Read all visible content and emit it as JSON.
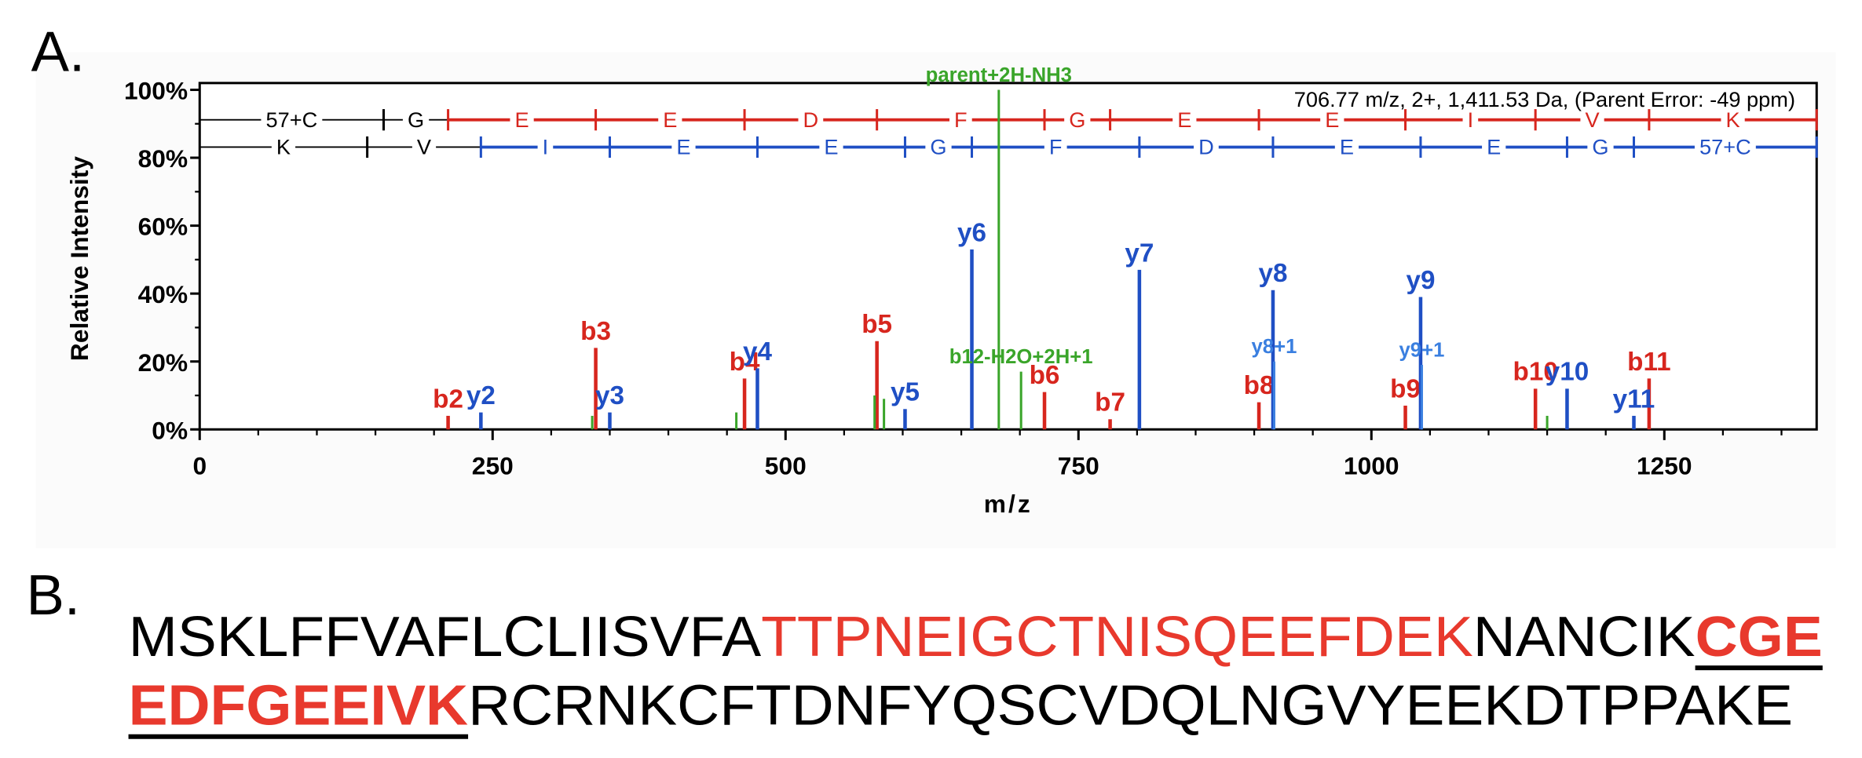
{
  "panels": {
    "a": "A.",
    "b": "B."
  },
  "chart_data": {
    "type": "spectrum",
    "note": "706.77 m/z, 2+, 1,411.53 Da,  (Parent Error: -49 ppm)",
    "xlabel": "m/z",
    "ylabel": "Relative Intensity",
    "xlim": [
      0,
      1380
    ],
    "ylim": [
      0,
      102
    ],
    "xticks": [
      0,
      250,
      500,
      750,
      1000,
      1250
    ],
    "yticks": [
      {
        "value": 0,
        "label": "0%"
      },
      {
        "value": 20,
        "label": "20%"
      },
      {
        "value": 40,
        "label": "40%"
      },
      {
        "value": 60,
        "label": "60%"
      },
      {
        "value": 80,
        "label": "80%"
      },
      {
        "value": 100,
        "label": "100%"
      }
    ],
    "x_minor_step": 50,
    "y_minor_step": 10,
    "series": [
      {
        "color": "#d7261e",
        "label_style": "ion",
        "x": [
          212,
          338,
          465,
          578,
          721,
          777,
          904,
          1029,
          1140,
          1237
        ],
        "values": [
          4,
          24,
          15,
          26,
          11,
          3,
          8,
          7,
          12,
          15
        ],
        "labels": [
          "b2",
          "b3",
          "b4",
          "b5",
          "b6",
          "b7",
          "b8",
          "b9",
          "b10",
          "b11"
        ]
      },
      {
        "color": "#1f4fc4",
        "label_style": "ion",
        "x": [
          240,
          350,
          476,
          602,
          659,
          802,
          916,
          1042,
          1167,
          1224
        ],
        "values": [
          5,
          5,
          18,
          6,
          53,
          47,
          41,
          39,
          12,
          4
        ],
        "labels": [
          "y2",
          "y3",
          "y4",
          "y5",
          "y6",
          "y7",
          "y8",
          "y9",
          "y10",
          "y11"
        ]
      },
      {
        "color": "#3a7fe0",
        "label_style": "minor",
        "x": [
          917,
          1043
        ],
        "values": [
          20,
          19
        ],
        "labels": [
          "y8+1",
          "y9+1"
        ]
      },
      {
        "color": "#3aa52a",
        "label_style": "minor",
        "x": [
          682,
          701,
          335,
          458,
          576,
          584,
          1150
        ],
        "values": [
          100,
          17,
          4,
          5,
          10,
          9,
          4
        ],
        "labels": [
          "parent+2H-NH3",
          "b12-H2O+2H+1",
          null,
          null,
          null,
          null,
          null
        ]
      }
    ],
    "ladders": [
      {
        "color": "#d7261e",
        "known_from": 2,
        "labels": [
          "57+C",
          "G",
          "E",
          "E",
          "D",
          "F",
          "G",
          "E",
          "E",
          "I",
          "V",
          "K"
        ],
        "breaks": [
          157,
          212,
          338,
          465,
          578,
          721,
          777,
          904,
          1029,
          1140,
          1237
        ]
      },
      {
        "color": "#1f4fc4",
        "known_from": 2,
        "labels": [
          "K",
          "V",
          "I",
          "E",
          "E",
          "G",
          "F",
          "D",
          "E",
          "E",
          "G",
          "57+C"
        ],
        "breaks": [
          143,
          240,
          350,
          476,
          602,
          659,
          802,
          916,
          1042,
          1167,
          1224
        ]
      }
    ]
  },
  "sequence": {
    "lines": [
      [
        {
          "text": "MSKLFFVAFLCLIISVFA",
          "style": "plain"
        },
        {
          "text": "TTPNEIGCTNISQEEFDEK",
          "style": "red"
        },
        {
          "text": "NANCIK",
          "style": "plain"
        },
        {
          "text": "CGE",
          "style": "red-bold-underline"
        }
      ],
      [
        {
          "text": "EDFGEEIVK",
          "style": "red-bold-underline"
        },
        {
          "text": "RCRNKCFTDNFYQSCVDQLNGVYEEKDTPPAKE",
          "style": "plain"
        }
      ]
    ]
  }
}
